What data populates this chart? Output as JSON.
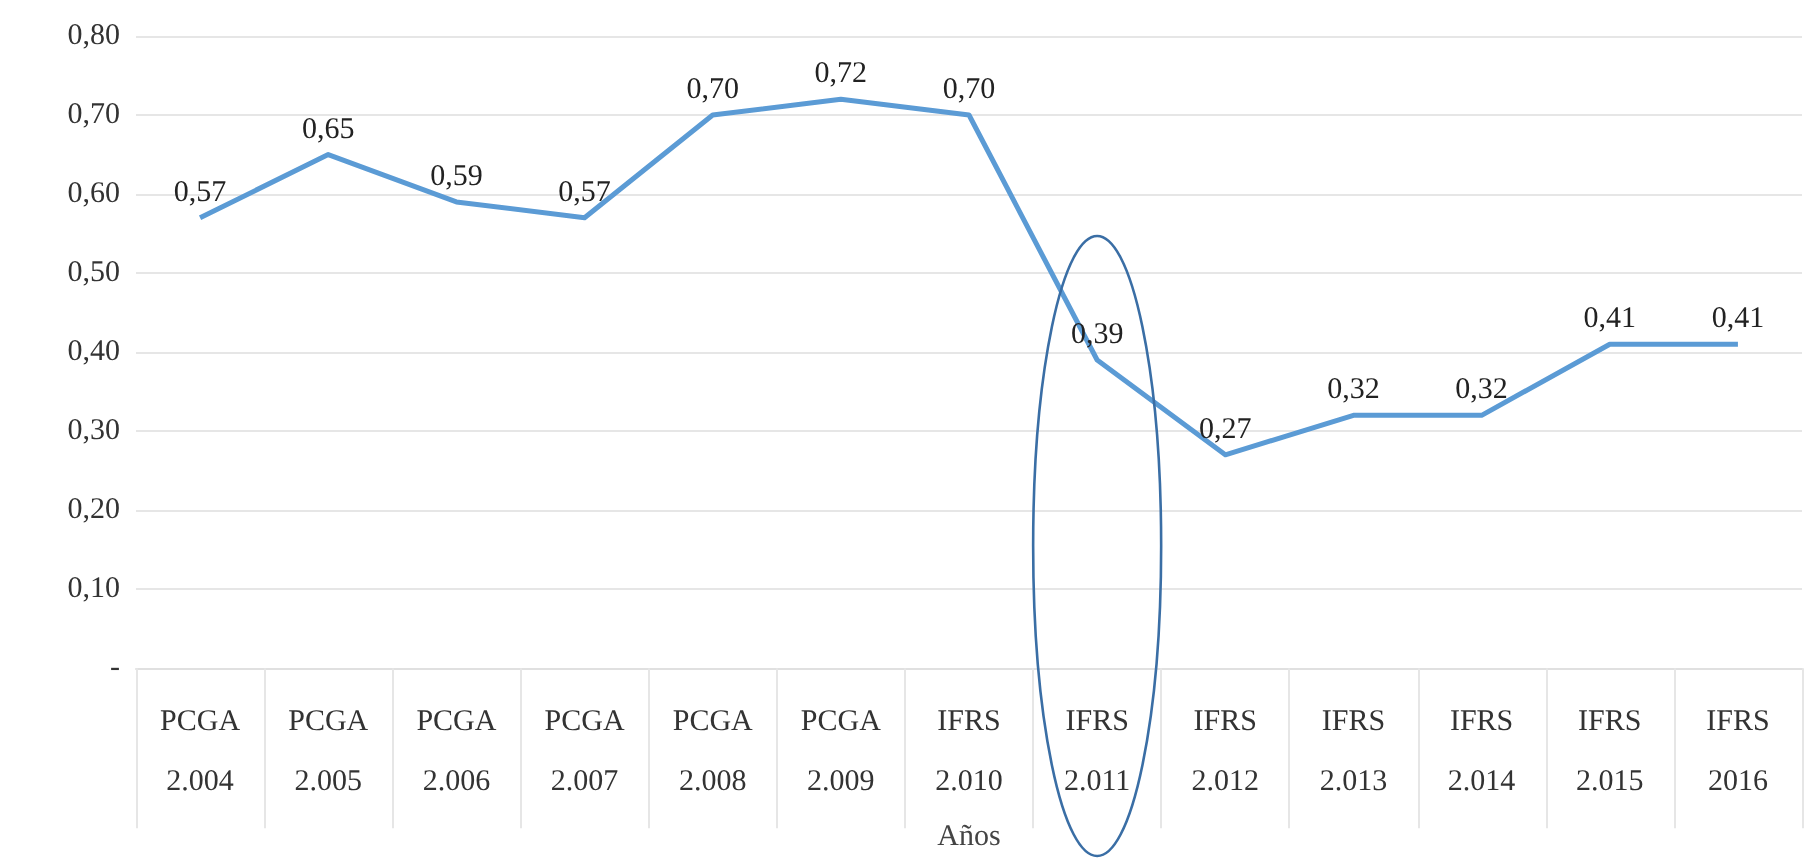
{
  "chart_data": {
    "type": "line",
    "xlabel": "Años",
    "categories": [
      "PCGA\n2.004",
      "PCGA\n2.005",
      "PCGA\n2.006",
      "PCGA\n2.007",
      "PCGA\n2.008",
      "PCGA\n2.009",
      "IFRS\n2.010",
      "IFRS\n2.011",
      "IFRS\n2.012",
      "IFRS\n2.013",
      "IFRS\n2.014",
      "IFRS\n2.015",
      "IFRS\n2016"
    ],
    "series": [
      {
        "color": "#5b9bd5",
        "values": [
          0.57,
          0.65,
          0.59,
          0.57,
          0.7,
          0.72,
          0.7,
          0.39,
          0.27,
          0.32,
          0.32,
          0.41,
          0.41
        ],
        "value_labels": [
          "0,57",
          "0,65",
          "0,59",
          "0,57",
          "0,70",
          "0,72",
          "0,70",
          "0,39",
          "0,27",
          "0,32",
          "0,32",
          "0,41",
          "0,41"
        ]
      }
    ],
    "ylim": [
      0,
      0.8
    ],
    "yticks": [
      {
        "value": 0,
        "label": "-"
      },
      {
        "value": 0.1,
        "label": "0,10"
      },
      {
        "value": 0.2,
        "label": "0,20"
      },
      {
        "value": 0.3,
        "label": "0,30"
      },
      {
        "value": 0.4,
        "label": "0,40"
      },
      {
        "value": 0.5,
        "label": "0,50"
      },
      {
        "value": 0.6,
        "label": "0,60"
      },
      {
        "value": 0.7,
        "label": "0,70"
      },
      {
        "value": 0.8,
        "label": "0,80"
      }
    ],
    "grid": "y",
    "marker": "none",
    "line_style": "solid"
  }
}
